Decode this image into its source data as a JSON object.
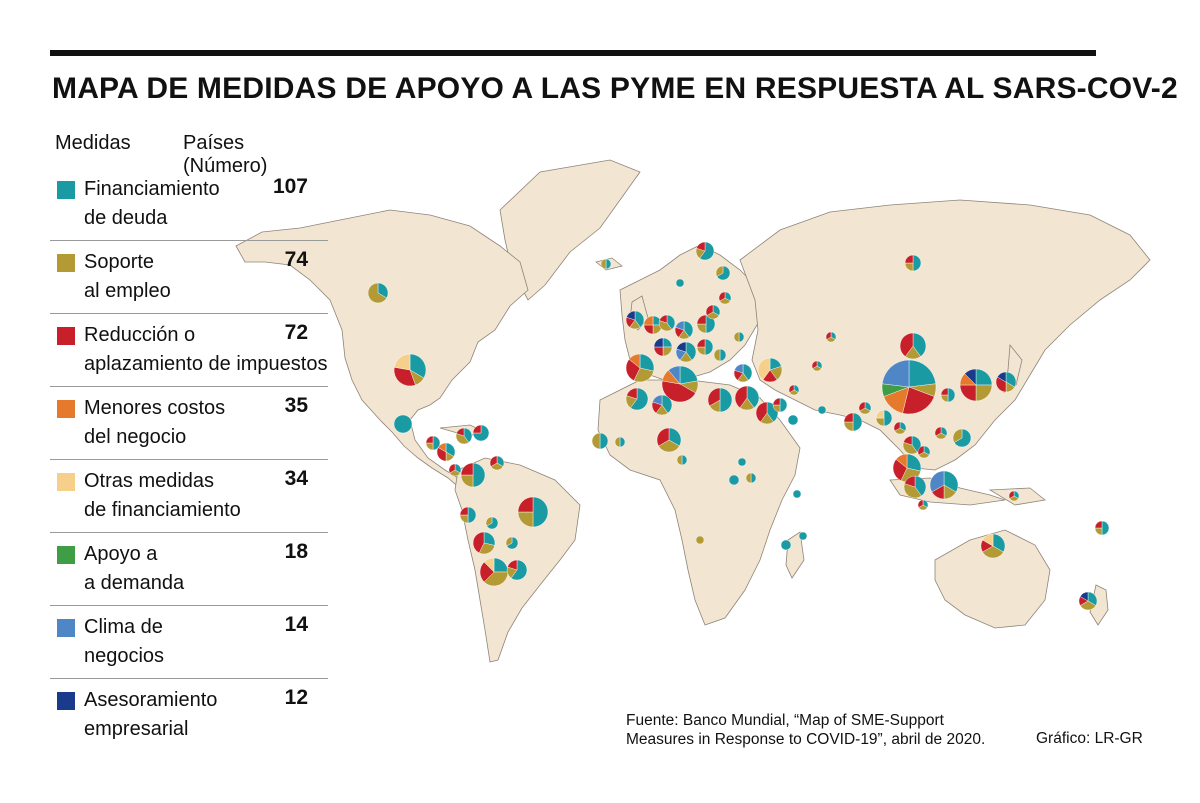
{
  "title": "MAPA DE MEDIDAS DE APOYO A LAS PYME EN RESPUESTA AL SARS-COV-2",
  "legend": {
    "header_measures": "Medidas",
    "header_countries": "Países (Número)",
    "items": [
      {
        "line1": "Financiamiento",
        "line2": "de deuda",
        "count": "107",
        "color": "#1a9ba3"
      },
      {
        "line1": "Soporte",
        "line2": "al empleo",
        "count": "74",
        "color": "#b49a35"
      },
      {
        "line1": "Reducción o",
        "line2": "aplazamiento de impuestos",
        "count": "72",
        "color": "#c8202a"
      },
      {
        "line1": "Menores costos",
        "line2": "del negocio",
        "count": "35",
        "color": "#e57a2c"
      },
      {
        "line1": "Otras medidas",
        "line2": "de financiamiento",
        "count": "34",
        "color": "#f6d08a"
      },
      {
        "line1": "Apoyo a",
        "line2": "a demanda",
        "count": "18",
        "color": "#3f9e45"
      },
      {
        "line1": "Clima de",
        "line2": "negocios",
        "count": "14",
        "color": "#4f86c6"
      },
      {
        "line1": "Asesoramiento",
        "line2": "empresarial",
        "count": "12",
        "color": "#1a3a8c"
      }
    ]
  },
  "map": {
    "land_color": "#f2e6d2",
    "border_color": "#8e8478"
  },
  "source": {
    "line1": "Fuente: Banco Mundial, “Map of SME-Support",
    "line2": "Measures in Response to COVID-19”, abril de 2020."
  },
  "credit": "Gráfico: LR-GR"
}
